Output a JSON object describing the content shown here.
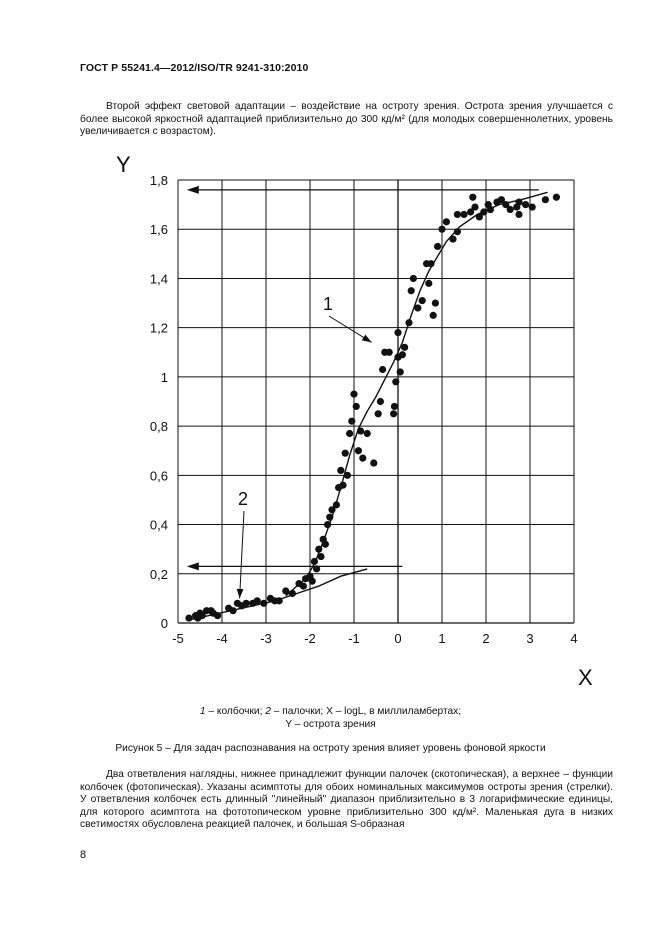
{
  "header": {
    "title": "ГОСТ Р 55241.4—2012/ISO/TR 9241-310:2010"
  },
  "paragraph_1": {
    "text": "Второй эффект световой адаптации – воздействие на остроту зрения. Острота зрения улучшается с более высокой яркостной адаптацией приблизительно до 300 кд/м² (для молодых совершеннолетних, уровень увеличивается с возрастом)."
  },
  "chart_data": {
    "type": "scatter",
    "x_axis_letter": "X",
    "y_axis_letter": "Y",
    "xlim": [
      -5,
      4
    ],
    "ylim": [
      0,
      1.8
    ],
    "x_ticks": [
      "-5",
      "-4",
      "-3",
      "-2",
      "-1",
      "0",
      "1",
      "2",
      "3",
      "4"
    ],
    "y_ticks": [
      "0",
      "0,2",
      "0,4",
      "0,6",
      "0,8",
      "1",
      "1,2",
      "1,4",
      "1,6",
      "1,8"
    ],
    "grid": true,
    "points": [
      [
        -4.75,
        0.02
      ],
      [
        -4.6,
        0.03
      ],
      [
        -4.55,
        0.02
      ],
      [
        -4.5,
        0.04
      ],
      [
        -4.45,
        0.03
      ],
      [
        -4.35,
        0.05
      ],
      [
        -4.25,
        0.05
      ],
      [
        -4.2,
        0.04
      ],
      [
        -4.1,
        0.03
      ],
      [
        -3.85,
        0.06
      ],
      [
        -3.75,
        0.05
      ],
      [
        -3.65,
        0.08
      ],
      [
        -3.55,
        0.07
      ],
      [
        -3.45,
        0.08
      ],
      [
        -3.3,
        0.08
      ],
      [
        -3.2,
        0.09
      ],
      [
        -3.05,
        0.08
      ],
      [
        -2.9,
        0.1
      ],
      [
        -2.8,
        0.09
      ],
      [
        -2.7,
        0.09
      ],
      [
        -2.55,
        0.13
      ],
      [
        -2.4,
        0.12
      ],
      [
        -2.25,
        0.16
      ],
      [
        -2.15,
        0.15
      ],
      [
        -2.1,
        0.18
      ],
      [
        -2.0,
        0.19
      ],
      [
        -1.95,
        0.17
      ],
      [
        -1.9,
        0.25
      ],
      [
        -1.85,
        0.22
      ],
      [
        -1.8,
        0.3
      ],
      [
        -1.75,
        0.27
      ],
      [
        -1.7,
        0.34
      ],
      [
        -1.65,
        0.32
      ],
      [
        -1.6,
        0.4
      ],
      [
        -1.55,
        0.43
      ],
      [
        -1.5,
        0.46
      ],
      [
        -1.4,
        0.48
      ],
      [
        -1.35,
        0.55
      ],
      [
        -1.3,
        0.62
      ],
      [
        -1.25,
        0.56
      ],
      [
        -1.2,
        0.69
      ],
      [
        -1.15,
        0.6
      ],
      [
        -1.1,
        0.77
      ],
      [
        -1.05,
        0.82
      ],
      [
        -1.0,
        0.93
      ],
      [
        -0.95,
        0.88
      ],
      [
        -0.9,
        0.7
      ],
      [
        -0.85,
        0.78
      ],
      [
        -0.8,
        0.67
      ],
      [
        -0.7,
        0.77
      ],
      [
        -0.55,
        0.65
      ],
      [
        -0.45,
        0.85
      ],
      [
        -0.4,
        0.9
      ],
      [
        -0.35,
        1.03
      ],
      [
        -0.3,
        1.1
      ],
      [
        -0.2,
        1.1
      ],
      [
        -0.1,
        0.85
      ],
      [
        -0.08,
        0.88
      ],
      [
        -0.05,
        0.98
      ],
      [
        0.0,
        1.08
      ],
      [
        0.0,
        1.18
      ],
      [
        0.05,
        1.02
      ],
      [
        0.1,
        1.09
      ],
      [
        0.15,
        1.12
      ],
      [
        0.25,
        1.22
      ],
      [
        0.3,
        1.35
      ],
      [
        0.35,
        1.4
      ],
      [
        0.45,
        1.28
      ],
      [
        0.55,
        1.31
      ],
      [
        0.65,
        1.46
      ],
      [
        0.7,
        1.38
      ],
      [
        0.75,
        1.46
      ],
      [
        0.8,
        1.25
      ],
      [
        0.85,
        1.3
      ],
      [
        0.9,
        1.53
      ],
      [
        1.0,
        1.6
      ],
      [
        1.1,
        1.63
      ],
      [
        1.25,
        1.56
      ],
      [
        1.35,
        1.59
      ],
      [
        1.35,
        1.66
      ],
      [
        1.5,
        1.66
      ],
      [
        1.65,
        1.67
      ],
      [
        1.7,
        1.73
      ],
      [
        1.75,
        1.69
      ],
      [
        1.85,
        1.65
      ],
      [
        1.95,
        1.67
      ],
      [
        2.05,
        1.7
      ],
      [
        2.1,
        1.68
      ],
      [
        2.25,
        1.71
      ],
      [
        2.35,
        1.72
      ],
      [
        2.45,
        1.7
      ],
      [
        2.55,
        1.68
      ],
      [
        2.7,
        1.69
      ],
      [
        2.75,
        1.66
      ],
      [
        2.75,
        1.71
      ],
      [
        2.9,
        1.7
      ],
      [
        3.05,
        1.69
      ],
      [
        3.35,
        1.72
      ],
      [
        3.6,
        1.73
      ]
    ],
    "curve_cones": [
      [
        -2.55,
        0.11
      ],
      [
        -2.3,
        0.15
      ],
      [
        -2.1,
        0.18
      ],
      [
        -1.9,
        0.24
      ],
      [
        -1.7,
        0.33
      ],
      [
        -1.5,
        0.43
      ],
      [
        -1.3,
        0.55
      ],
      [
        -1.1,
        0.68
      ],
      [
        -0.9,
        0.79
      ],
      [
        -0.7,
        0.86
      ],
      [
        -0.5,
        0.92
      ],
      [
        -0.3,
        0.99
      ],
      [
        -0.1,
        1.06
      ],
      [
        0.1,
        1.14
      ],
      [
        0.3,
        1.25
      ],
      [
        0.5,
        1.35
      ],
      [
        0.7,
        1.43
      ],
      [
        0.9,
        1.49
      ],
      [
        1.1,
        1.55
      ],
      [
        1.4,
        1.61
      ],
      [
        1.8,
        1.66
      ],
      [
        2.3,
        1.7
      ],
      [
        2.8,
        1.72
      ],
      [
        3.4,
        1.75
      ]
    ],
    "curve_rods": [
      [
        -4.8,
        0.01
      ],
      [
        -4.3,
        0.03
      ],
      [
        -3.8,
        0.05
      ],
      [
        -3.3,
        0.07
      ],
      [
        -2.8,
        0.09
      ],
      [
        -2.3,
        0.12
      ],
      [
        -1.8,
        0.15
      ],
      [
        -1.3,
        0.19
      ],
      [
        -0.7,
        0.22
      ]
    ],
    "asymptote_upper": {
      "y": 1.76,
      "x_from": 3.2,
      "x_to": -4.8
    },
    "asymptote_lower": {
      "y": 0.23,
      "x_from": 0.1,
      "x_to": -4.8
    },
    "label_1": {
      "text": "1",
      "anchor_x": -0.6,
      "anchor_y": 1.14
    },
    "label_2": {
      "text": "2",
      "anchor_x": -3.6,
      "anchor_y": 0.1
    }
  },
  "legend_caption": {
    "part1_num": "1",
    "part1_text": " – колбочки; ",
    "part2_num": "2",
    "part2_text": " – палочки; X – logL, в миллиламбертах;",
    "line2": "Y – острота зрения"
  },
  "figure_caption": "Рисунок 5 – Для задач распознавания на остроту зрения влияет уровень фоновой яркости",
  "paragraph_2": {
    "text": "Два ответвления наглядны, нижнее принадлежит функции палочек (скотопическая), а верхнее – функции колбочек (фотопическая). Указаны асимптоты для обоих номинальных максимумов остроты зрения (стрелки). У ответвления колбочек есть длинный \"линейный\" диапазон приблизительно в 3 логарифмические единицы, для которого асимптота на фототопическом уровне приблизительно 300 кд/м². Маленькая дуга в низких светимостях обусловлена реакцией палочек, и большая S-образная"
  },
  "page_number": "8"
}
